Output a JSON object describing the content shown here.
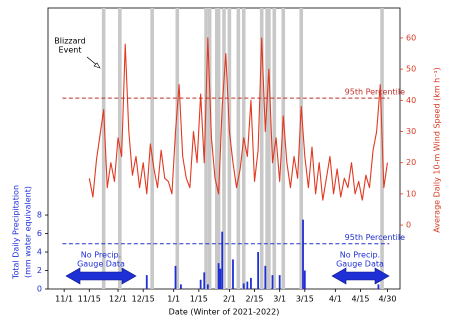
{
  "chart_data": {
    "type": "combo",
    "xlabel": "Date (Winter of 2021-2022)",
    "ylabel": [
      "Total Daily Precipitation",
      "(mm water equivalent)"
    ],
    "y2label": "Average Daily 10-m Wind Speed (km h⁻¹)",
    "xlim": [
      -9,
      187
    ],
    "xticks": [
      {
        "value": 0,
        "label": "11/1"
      },
      {
        "value": 14,
        "label": "11/15"
      },
      {
        "value": 30,
        "label": "12/1"
      },
      {
        "value": 44,
        "label": "12/15"
      },
      {
        "value": 61,
        "label": "1/1"
      },
      {
        "value": 75,
        "label": "1/15"
      },
      {
        "value": 92,
        "label": "2/1"
      },
      {
        "value": 106,
        "label": "2/15"
      },
      {
        "value": 120,
        "label": "3/1"
      },
      {
        "value": 134,
        "label": "3/15"
      },
      {
        "value": 151,
        "label": "4/1"
      },
      {
        "value": 165,
        "label": "4/15"
      },
      {
        "value": 180,
        "label": "4/30"
      }
    ],
    "ylim": [
      0,
      30.4
    ],
    "yticks": [
      0,
      2,
      4,
      6,
      8
    ],
    "y2lim": [
      -20.5,
      69.6
    ],
    "y2ticks": [
      0,
      10,
      20,
      30,
      40,
      50,
      60
    ],
    "left_color": "#1f2fd6",
    "right_color": "#d63a22",
    "events": [
      22,
      31,
      49,
      63,
      79,
      81,
      85,
      86,
      89,
      92,
      97,
      100,
      110,
      113,
      114,
      117,
      122,
      132,
      177
    ],
    "event_color": "#c8c8c8",
    "series": [
      {
        "type": "bar",
        "color": "#1f2fd6",
        "x": [
          46,
          62,
          65,
          76,
          78,
          80,
          86,
          87,
          88,
          94,
          100,
          102,
          104,
          108,
          112,
          116,
          120,
          133,
          134,
          175
        ],
        "values": [
          1.5,
          2.5,
          0.5,
          1,
          1.8,
          0.5,
          2.8,
          2.2,
          6.2,
          3.2,
          0.6,
          0.8,
          1.2,
          4,
          2.5,
          1.5,
          1.5,
          7.5,
          2,
          0.5
        ]
      },
      {
        "type": "line",
        "axis": "y2",
        "color": "#e03a22",
        "x": [
          14,
          16,
          18,
          20,
          22,
          24,
          26,
          28,
          30,
          32,
          34,
          36,
          38,
          40,
          42,
          44,
          46,
          48,
          50,
          52,
          54,
          56,
          58,
          60,
          62,
          64,
          66,
          68,
          70,
          72,
          74,
          76,
          78,
          80,
          82,
          84,
          86,
          88,
          90,
          92,
          94,
          96,
          98,
          100,
          102,
          104,
          106,
          108,
          110,
          112,
          114,
          116,
          118,
          120,
          122,
          124,
          126,
          128,
          130,
          132,
          134,
          136,
          138,
          140,
          142,
          144,
          146,
          148,
          150,
          152,
          154,
          156,
          158,
          160,
          162,
          164,
          166,
          168,
          170,
          172,
          174,
          176,
          178,
          180
        ],
        "values": [
          15,
          9,
          21,
          29,
          37,
          12,
          20,
          14,
          28,
          22,
          58,
          30,
          16,
          22,
          12,
          20,
          10,
          26,
          18,
          12,
          24,
          15,
          14,
          10,
          30,
          45,
          22,
          15,
          12,
          30,
          20,
          42,
          20,
          60,
          28,
          15,
          10,
          38,
          55,
          30,
          20,
          12,
          18,
          28,
          22,
          40,
          14,
          24,
          60,
          30,
          50,
          20,
          28,
          14,
          35,
          20,
          12,
          22,
          15,
          38,
          22,
          12,
          25,
          10,
          20,
          8,
          15,
          22,
          10,
          18,
          9,
          15,
          12,
          20,
          10,
          14,
          8,
          16,
          12,
          24,
          30,
          45,
          12,
          20
        ]
      }
    ],
    "reference_lines": [
      {
        "axis": "y",
        "value": 4.9,
        "label": "95th Percentile",
        "color": "#2233cc"
      },
      {
        "axis": "y2",
        "value": 40.7,
        "label": "95th Percentile",
        "color": "#c0302a"
      }
    ],
    "annotations": {
      "blizzard": [
        "Blizzard",
        "Event"
      ],
      "no_data_left": [
        "No Precip.",
        "Gauge Data"
      ],
      "no_data_right": [
        "No Precip.",
        "Gauge Data"
      ]
    }
  }
}
